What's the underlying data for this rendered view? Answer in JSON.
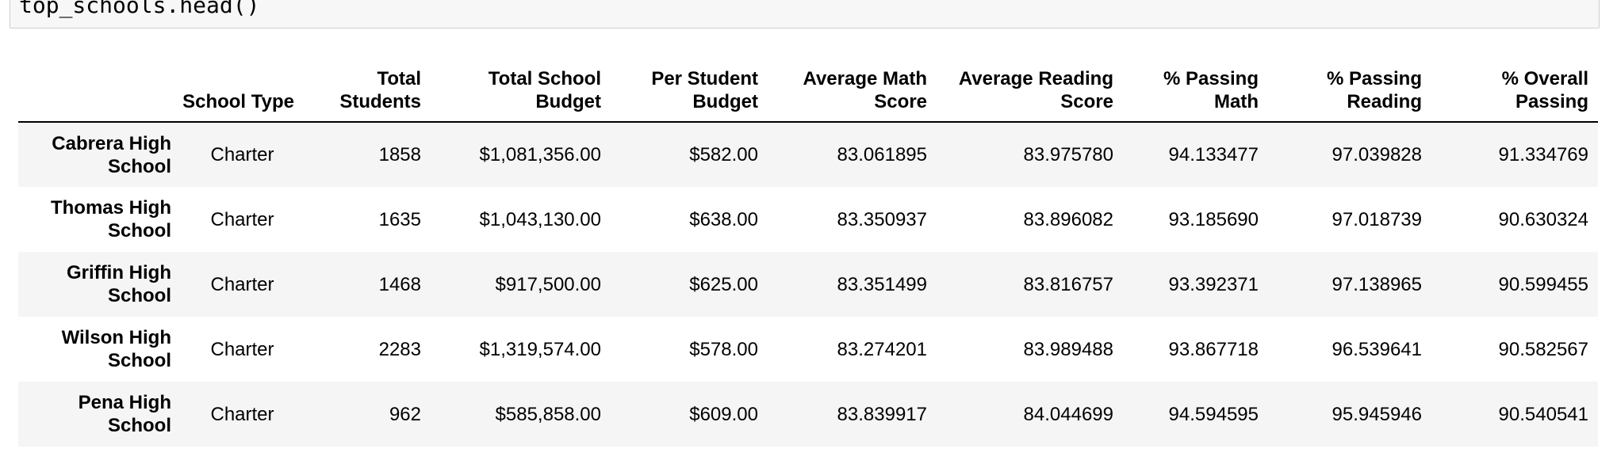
{
  "code_cell": {
    "source": "top_schools.head()"
  },
  "table": {
    "columns": [
      "",
      "School Type",
      "Total Students",
      "Total School Budget",
      "Per Student Budget",
      "Average Math Score",
      "Average Reading Score",
      "% Passing Math",
      "% Passing Reading",
      "% Overall Passing"
    ],
    "rows": [
      {
        "index": "Cabrera High School",
        "cells": [
          "Charter",
          "1858",
          "$1,081,356.00",
          "$582.00",
          "83.061895",
          "83.975780",
          "94.133477",
          "97.039828",
          "91.334769"
        ]
      },
      {
        "index": "Thomas High School",
        "cells": [
          "Charter",
          "1635",
          "$1,043,130.00",
          "$638.00",
          "83.350937",
          "83.896082",
          "93.185690",
          "97.018739",
          "90.630324"
        ]
      },
      {
        "index": "Griffin High School",
        "cells": [
          "Charter",
          "1468",
          "$917,500.00",
          "$625.00",
          "83.351499",
          "83.816757",
          "93.392371",
          "97.138965",
          "90.599455"
        ]
      },
      {
        "index": "Wilson High School",
        "cells": [
          "Charter",
          "2283",
          "$1,319,574.00",
          "$578.00",
          "83.274201",
          "83.989488",
          "93.867718",
          "96.539641",
          "90.582567"
        ]
      },
      {
        "index": "Pena High School",
        "cells": [
          "Charter",
          "962",
          "$585,858.00",
          "$609.00",
          "83.839917",
          "84.044699",
          "94.594595",
          "95.945946",
          "90.540541"
        ]
      }
    ]
  }
}
